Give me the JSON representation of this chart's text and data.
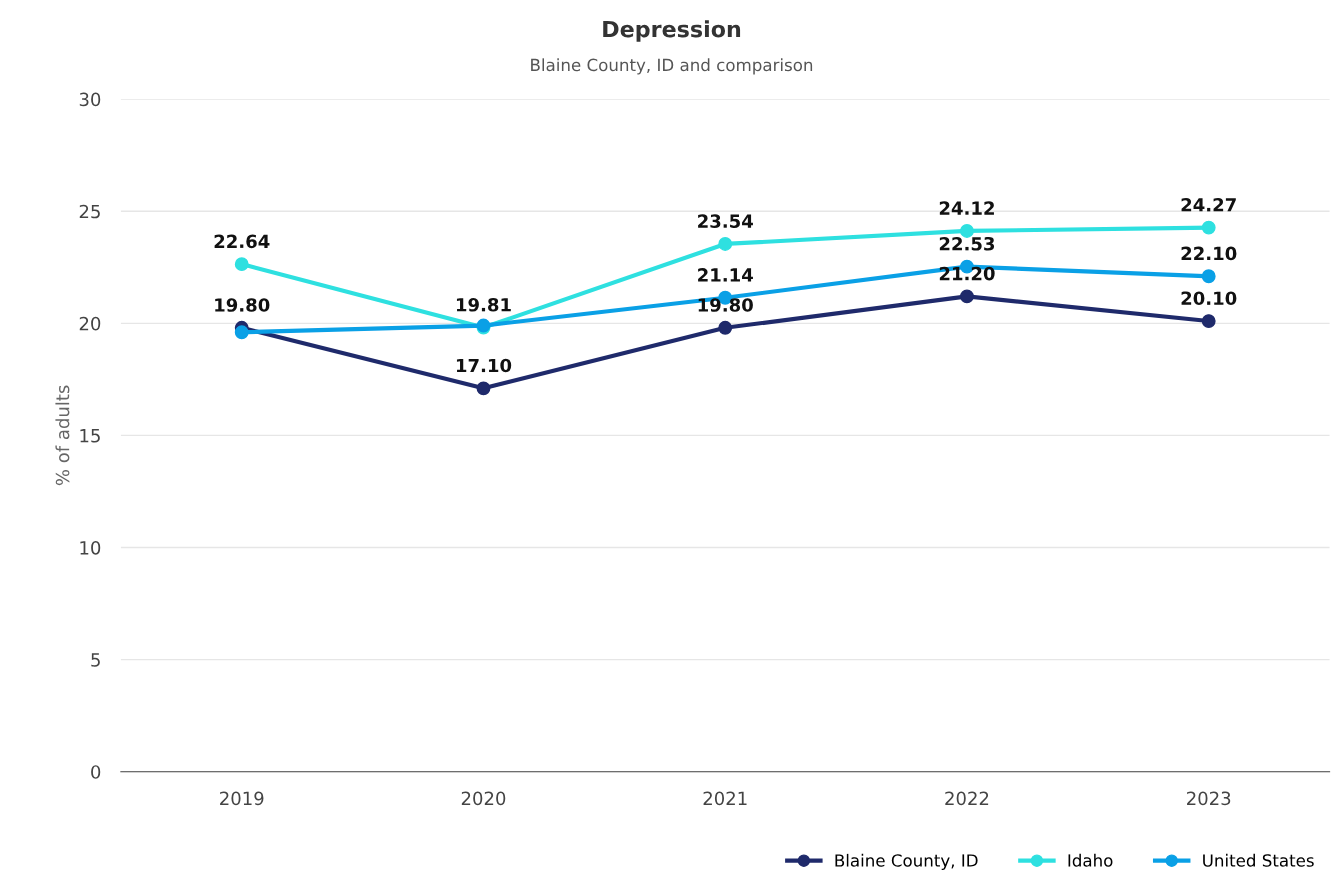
{
  "chart_data": {
    "type": "line",
    "title": "Depression",
    "subtitle": "Blaine County, ID and comparison",
    "ylabel": "% of adults",
    "categories": [
      "2019",
      "2020",
      "2021",
      "2022",
      "2023"
    ],
    "series": [
      {
        "name": "Blaine County, ID",
        "color": "#1f2a6b",
        "values": [
          19.8,
          17.1,
          19.8,
          21.2,
          20.1
        ],
        "value_labels": [
          "19.80",
          "17.10",
          "19.80",
          "21.20",
          "20.10"
        ]
      },
      {
        "name": "Idaho",
        "color": "#2ee0e0",
        "values": [
          22.64,
          19.81,
          23.54,
          24.12,
          24.27
        ],
        "value_labels": [
          "22.64",
          "19.81",
          "23.54",
          "24.12",
          "24.27"
        ]
      },
      {
        "name": "United States",
        "color": "#0aa0e6",
        "values": [
          19.6,
          19.9,
          21.14,
          22.53,
          22.1
        ],
        "value_labels": [
          null,
          null,
          "21.14",
          "22.53",
          "22.10"
        ]
      }
    ],
    "ylim": [
      0,
      30
    ],
    "yticks": [
      0,
      5,
      10,
      15,
      20,
      25,
      30
    ],
    "grid": "y",
    "legend": "bottom right",
    "marker": "circle",
    "line_style": "solid"
  }
}
